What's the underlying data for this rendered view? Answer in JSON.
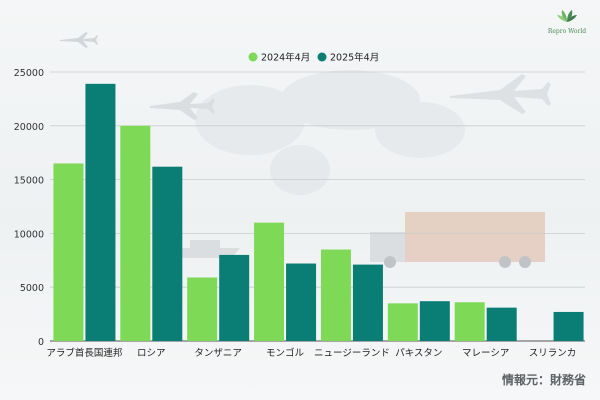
{
  "brand": {
    "logo_text": "Repro World",
    "logo_icon": "lotus-leaf-icon",
    "color": "#4a8a55"
  },
  "source_label": "情報元：財務省",
  "chart_data": {
    "type": "bar",
    "categories": [
      "アラブ首長国連邦",
      "ロシア",
      "タンザニア",
      "モンゴル",
      "ニュージーランド",
      "パキスタン",
      "マレーシア",
      "スリランカ"
    ],
    "series": [
      {
        "name": "2024年4月",
        "color": "#7ed957",
        "values": [
          16500,
          20000,
          5900,
          11000,
          8500,
          3500,
          3600,
          null
        ]
      },
      {
        "name": "2025年4月",
        "color": "#0a7d74",
        "values": [
          23900,
          16200,
          8000,
          7200,
          7100,
          3700,
          3100,
          2700
        ]
      }
    ],
    "yticks": [
      0,
      5000,
      10000,
      15000,
      20000,
      25000
    ],
    "ylim": [
      0,
      25000
    ],
    "grid": true,
    "legend": "top-center"
  }
}
